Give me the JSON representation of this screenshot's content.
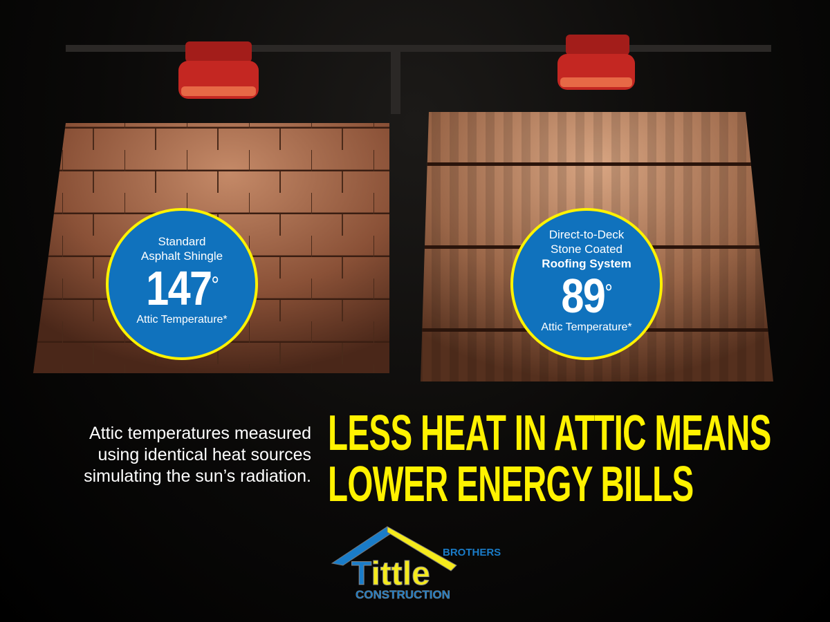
{
  "panels": [
    {
      "label_lines": [
        "Standard",
        "Asphalt Shingle"
      ],
      "temperature": "147",
      "degree": "°",
      "footnote": "Attic Temperature*"
    },
    {
      "label_lines": [
        "Direct-to-Deck",
        "Stone Coated",
        "Roofing System"
      ],
      "temperature": "89",
      "degree": "°",
      "footnote": "Attic Temperature*"
    }
  ],
  "caption_lines": [
    "Attic temperatures measured",
    "using identical heat sources",
    "simulating the sun’s radiation."
  ],
  "headline_lines": [
    "LESS HEAT IN ATTIC MEANS",
    "LOWER ENERGY BILLS"
  ],
  "logo": {
    "name": "Tittle",
    "top": "BROTHERS",
    "bottom": "CONSTRUCTION"
  },
  "colors": {
    "circle_fill": "#1072bd",
    "circle_ring": "#fff200",
    "headline": "#fff200",
    "logo_blue": "#1a7cc8",
    "logo_yellow": "#f5ea1c"
  }
}
